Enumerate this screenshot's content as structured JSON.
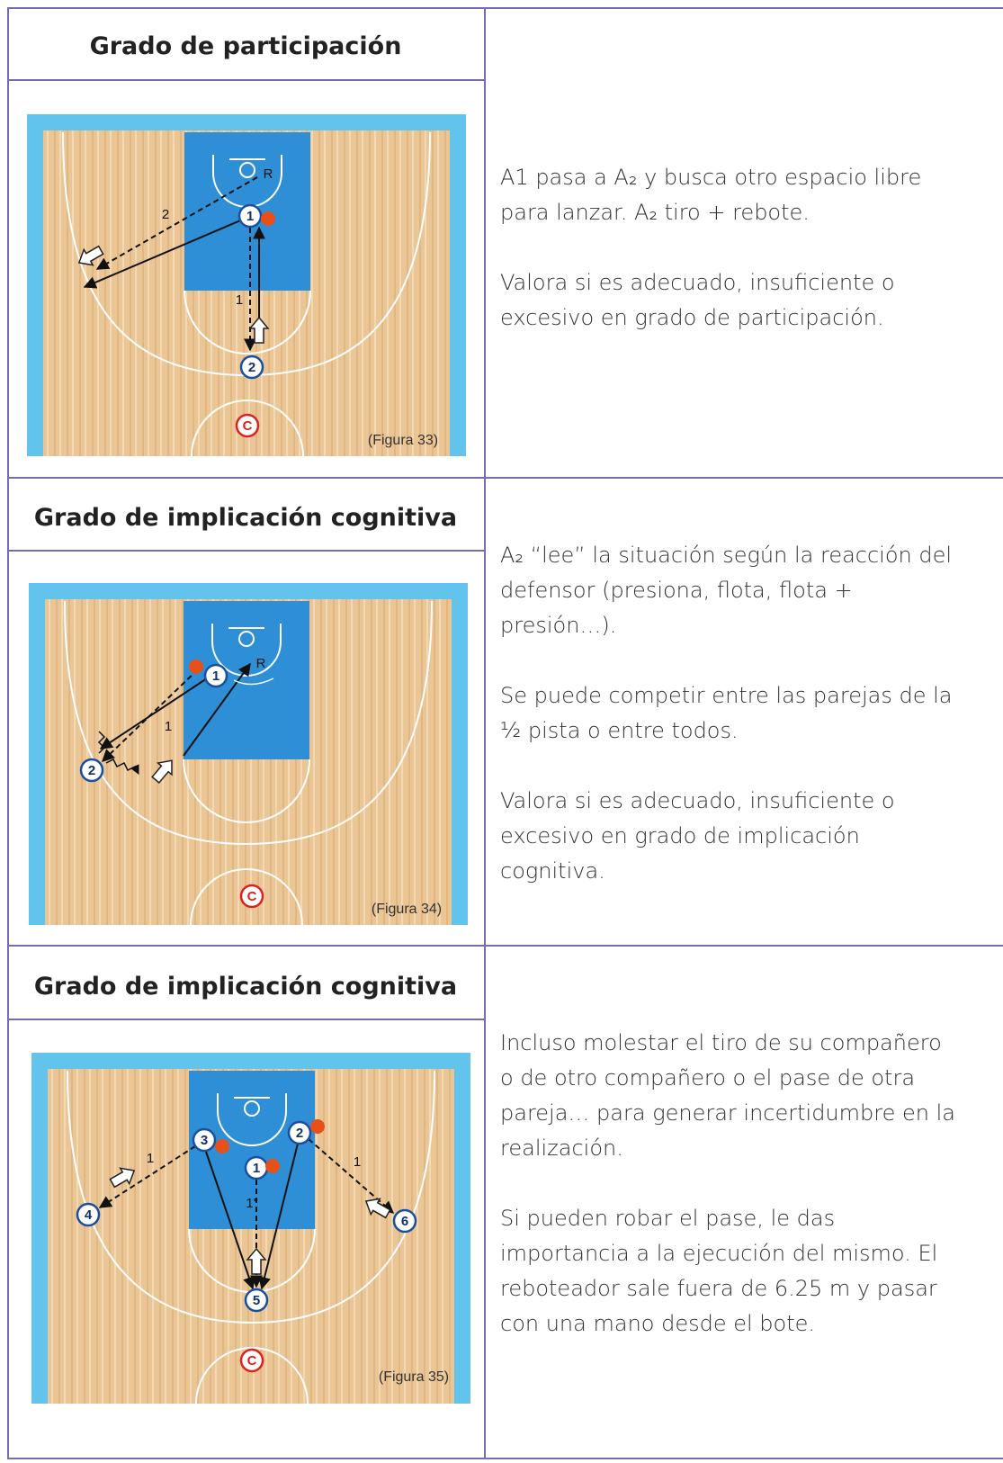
{
  "sections": [
    {
      "heading": "Grado de participación",
      "figure": {
        "caption": "(Figura 33)",
        "labels": [
          "1",
          "2",
          "R",
          "2",
          "1",
          "C"
        ]
      },
      "paragraphs": [
        "A1 pasa a A₂ y busca otro espacio libre para lanzar. A₂ tiro + rebote.",
        "Valora si es adecuado, insuficiente o excesivo en grado de participación."
      ]
    },
    {
      "heading": "Grado de implicación cognitiva",
      "figure": {
        "caption": "(Figura 34)",
        "labels": [
          "1",
          "2",
          "R",
          "1",
          "C"
        ]
      },
      "paragraphs": [
        "A₂ “lee” la situación según la reacción del defensor (presiona, flota, flota + presión…).",
        "Se puede competir entre las parejas de la ½ pista o entre todos.",
        "Valora si es adecuado, insuficiente o excesivo en grado de implicación cognitiva."
      ]
    },
    {
      "heading": "Grado de implicación cognitiva",
      "figure": {
        "caption": "(Figura 35)",
        "labels": [
          "1",
          "2",
          "3",
          "4",
          "5",
          "6",
          "1",
          "1",
          "1'",
          "C"
        ]
      },
      "paragraphs": [
        "Incluso molestar el tiro de su compañero o de otro compañero o el pase de otra pareja… para generar incertidumbre en la realización.",
        "Si pueden robar el pase, le das importancia a la ejecución del mismo. El reboteador sale fuera de 6.25 m y pasar con una mano desde el bote."
      ]
    }
  ]
}
